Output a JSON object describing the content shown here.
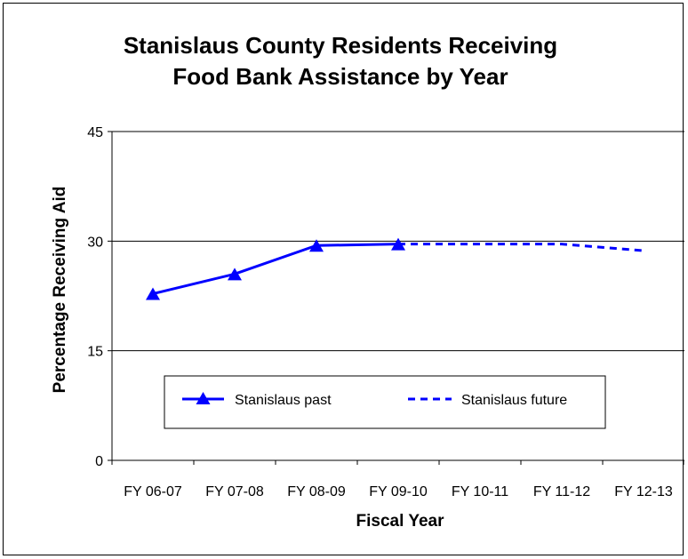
{
  "chart_data": {
    "type": "line",
    "title_lines": [
      "Stanislaus County Residents Receiving",
      "Food Bank Assistance by Year"
    ],
    "xlabel": "Fiscal Year",
    "ylabel": "Percentage Receiving Aid",
    "categories": [
      "FY 06-07",
      "FY 07-08",
      "FY 08-09",
      "FY 09-10",
      "FY 10-11",
      "FY 11-12",
      "FY 12-13"
    ],
    "ylim": [
      0,
      45
    ],
    "yticks": [
      0,
      15,
      30,
      45
    ],
    "gridlines": [
      15,
      30
    ],
    "legend_position": "bottom-center inside plot",
    "series": [
      {
        "name": "Stanislaus past",
        "style": "solid",
        "marker": "triangle",
        "color": "#0000FF",
        "values": [
          22.8,
          25.5,
          29.4,
          29.6,
          null,
          null,
          null
        ]
      },
      {
        "name": "Stanislaus future",
        "style": "dashed",
        "marker": "none",
        "color": "#0000FF",
        "values": [
          null,
          null,
          null,
          29.6,
          29.6,
          29.6,
          28.7
        ]
      }
    ]
  }
}
